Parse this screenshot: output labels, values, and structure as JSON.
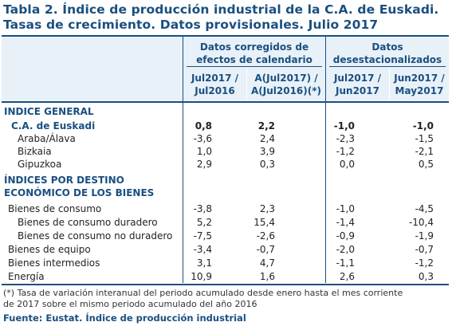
{
  "title": {
    "line1": "Tabla 2. Índice de producción industrial de la C.A. de Euskadi.",
    "line2": "Tasas de crecimiento. Datos provisionales. Julio 2017"
  },
  "header": {
    "group1": {
      "line1": "Datos corregidos de",
      "line2": "efectos de calendario"
    },
    "group2": {
      "line1": "Datos",
      "line2": "desestacionalizados"
    },
    "cols": [
      {
        "line1": "Jul2017 /",
        "line2": "Jul2016"
      },
      {
        "line1": "A(Jul2017) /",
        "line2": "A(Jul2016)(*)"
      },
      {
        "line1": "Jul2017 /",
        "line2": "Jun2017"
      },
      {
        "line1": "Jun2017 /",
        "line2": "May2017"
      }
    ]
  },
  "sections": [
    {
      "heading": [
        "INDICE GENERAL"
      ],
      "rows": [
        {
          "label": "C.A. de Euskadi",
          "values": [
            "0,8",
            "2,2",
            "-1,0",
            "-1,0"
          ]
        },
        {
          "label": "Araba/Álava",
          "values": [
            "-3,6",
            "2,4",
            "-2,3",
            "-1,5"
          ]
        },
        {
          "label": "Bizkaia",
          "values": [
            "1,0",
            "3,9",
            "-1,2",
            "-2,1"
          ]
        },
        {
          "label": "Gipuzkoa",
          "values": [
            "2,9",
            "0,3",
            "0,0",
            "0,5"
          ]
        }
      ]
    },
    {
      "heading": [
        "ÍNDICES POR DESTINO",
        "ECONÓMICO DE LOS BIENES"
      ],
      "rows": [
        {
          "label": "Bienes de consumo",
          "values": [
            "-3,8",
            "2,3",
            "-1,0",
            "-4,5"
          ]
        },
        {
          "label": "Bienes de consumo duradero",
          "values": [
            "5,2",
            "15,4",
            "-1,4",
            "-10,4"
          ]
        },
        {
          "label": "Bienes de consumo no duradero",
          "values": [
            "-7,5",
            "-2,6",
            "-0,9",
            "-1,9"
          ]
        },
        {
          "label": "Bienes de equipo",
          "values": [
            "-3,4",
            "-0,7",
            "-2,0",
            "-0,7"
          ]
        },
        {
          "label": "Bienes intermedios",
          "values": [
            "3,1",
            "4,7",
            "-1,1",
            "-1,2"
          ]
        },
        {
          "label": "Energía",
          "values": [
            "10,9",
            "1,6",
            "2,6",
            "0,3"
          ]
        }
      ]
    }
  ],
  "note": {
    "line1": "(*) Tasa de variación interanual del periodo acumulado desde enero hasta el mes corriente",
    "line2": "de 2017 sobre el mismo periodo acumulado del año 2016"
  },
  "source": "Fuente: Eustat. Índice de producción industrial",
  "colors": {
    "accent": "#1a4f80",
    "header_bg": "#e8f1f8"
  }
}
